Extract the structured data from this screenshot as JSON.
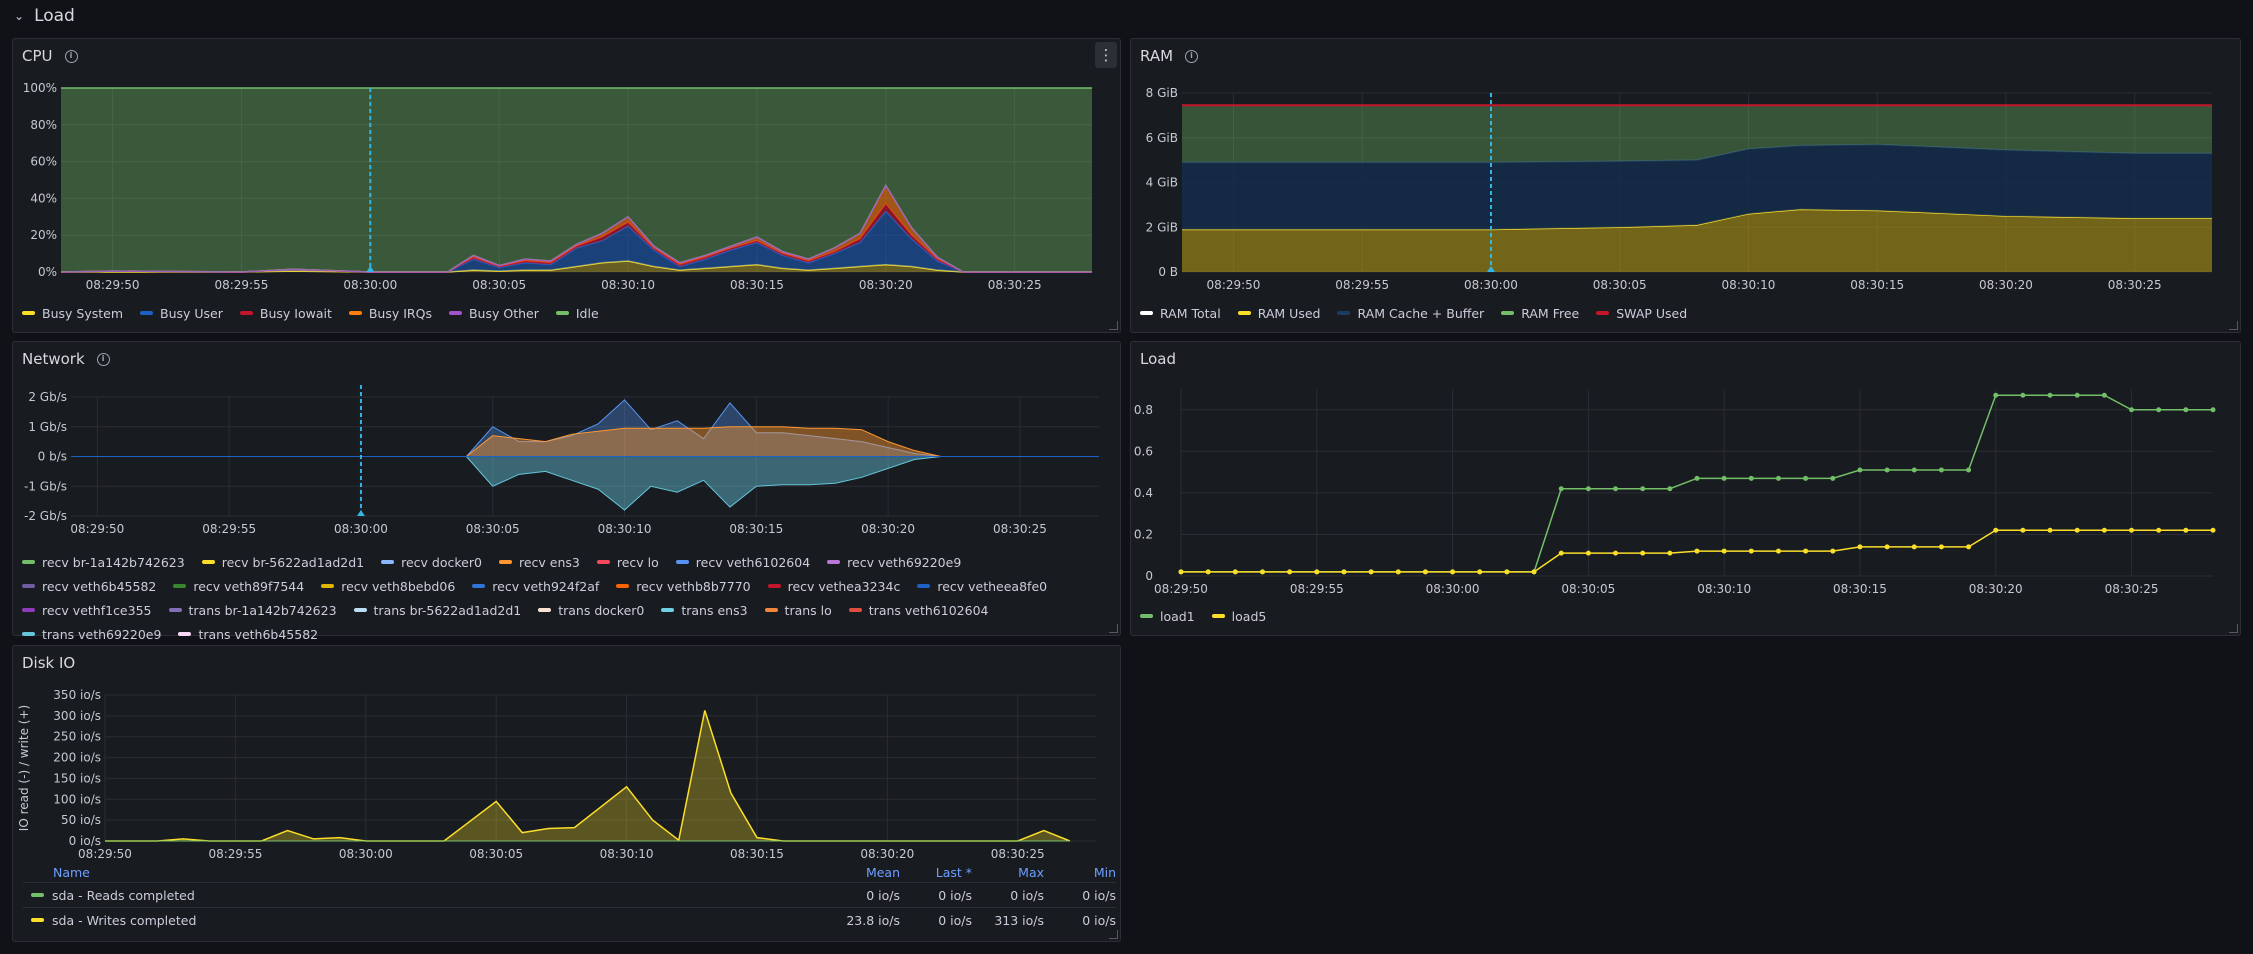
{
  "row": {
    "title": "Load"
  },
  "cpu": {
    "title": "CPU",
    "yticks": [
      "100%",
      "80%",
      "60%",
      "40%",
      "20%",
      "0%"
    ],
    "xticks": [
      "08:29:50",
      "08:29:55",
      "08:30:00",
      "08:30:05",
      "08:30:10",
      "08:30:15",
      "08:30:20",
      "08:30:25"
    ],
    "legend": [
      {
        "label": "Busy System",
        "color": "#fade2a"
      },
      {
        "label": "Busy User",
        "color": "#1f60c4"
      },
      {
        "label": "Busy Iowait",
        "color": "#c4162a"
      },
      {
        "label": "Busy IRQs",
        "color": "#ff7f0e"
      },
      {
        "label": "Busy Other",
        "color": "#a352cc"
      },
      {
        "label": "Idle",
        "color": "#73bf69"
      }
    ]
  },
  "ram": {
    "title": "RAM",
    "yticks": [
      "8 GiB",
      "6 GiB",
      "4 GiB",
      "2 GiB",
      "0 B"
    ],
    "xticks": [
      "08:29:50",
      "08:29:55",
      "08:30:00",
      "08:30:05",
      "08:30:10",
      "08:30:15",
      "08:30:20",
      "08:30:25"
    ],
    "legend": [
      {
        "label": "RAM Total",
        "color": "#ffffff"
      },
      {
        "label": "RAM Used",
        "color": "#fade2a"
      },
      {
        "label": "RAM Cache + Buffer",
        "color": "#1f3a5f"
      },
      {
        "label": "RAM Free",
        "color": "#73bf69"
      },
      {
        "label": "SWAP Used",
        "color": "#c4162a"
      }
    ]
  },
  "network": {
    "title": "Network",
    "yticks": [
      "2 Gb/s",
      "1 Gb/s",
      "0 b/s",
      "-1 Gb/s",
      "-2 Gb/s"
    ],
    "xticks": [
      "08:29:50",
      "08:29:55",
      "08:30:00",
      "08:30:05",
      "08:30:10",
      "08:30:15",
      "08:30:20",
      "08:30:25"
    ],
    "legend": [
      {
        "label": "recv br-1a142b742623",
        "color": "#73bf69"
      },
      {
        "label": "recv br-5622ad1ad2d1",
        "color": "#fade2a"
      },
      {
        "label": "recv docker0",
        "color": "#8ab8ff"
      },
      {
        "label": "recv ens3",
        "color": "#ff9830"
      },
      {
        "label": "recv lo",
        "color": "#f2495c"
      },
      {
        "label": "recv veth6102604",
        "color": "#5794f2"
      },
      {
        "label": "recv veth69220e9",
        "color": "#b877d9"
      },
      {
        "label": "recv veth6b45582",
        "color": "#705da0"
      },
      {
        "label": "recv veth89f7544",
        "color": "#37872d"
      },
      {
        "label": "recv veth8bebd06",
        "color": "#e0b400"
      },
      {
        "label": "recv veth924f2af",
        "color": "#3274d9"
      },
      {
        "label": "recv vethb8b7770",
        "color": "#fa6400"
      },
      {
        "label": "recv vethea3234c",
        "color": "#c4162a"
      },
      {
        "label": "recv vetheea8fe0",
        "color": "#1f60c4"
      },
      {
        "label": "recv vethf1ce355",
        "color": "#8f3bb8"
      },
      {
        "label": "trans br-1a142b742623",
        "color": "#806eb7"
      },
      {
        "label": "trans br-5622ad1ad2d1",
        "color": "#badff4"
      },
      {
        "label": "trans docker0",
        "color": "#f9e2d2"
      },
      {
        "label": "trans ens3",
        "color": "#6ed0e0"
      },
      {
        "label": "trans lo",
        "color": "#ef843c"
      },
      {
        "label": "trans veth6102604",
        "color": "#e24d42"
      },
      {
        "label": "trans veth69220e9",
        "color": "#65c5db"
      },
      {
        "label": "trans veth6b45582",
        "color": "#f9d9f9"
      }
    ]
  },
  "load": {
    "title": "Load",
    "yticks": [
      "0.8",
      "0.6",
      "0.4",
      "0.2",
      "0"
    ],
    "xticks": [
      "08:29:50",
      "08:29:55",
      "08:30:00",
      "08:30:05",
      "08:30:10",
      "08:30:15",
      "08:30:20",
      "08:30:25"
    ],
    "legend": [
      {
        "label": "load1",
        "color": "#73bf69"
      },
      {
        "label": "load5",
        "color": "#fade2a"
      }
    ]
  },
  "diskio": {
    "title": "Disk IO",
    "ylabel": "IO read (-) / write (+)",
    "yticks": [
      "350 io/s",
      "300 io/s",
      "250 io/s",
      "200 io/s",
      "150 io/s",
      "100 io/s",
      "50 io/s",
      "0 io/s"
    ],
    "xticks": [
      "08:29:50",
      "08:29:55",
      "08:30:00",
      "08:30:05",
      "08:30:10",
      "08:30:15",
      "08:30:20",
      "08:30:25"
    ],
    "table": {
      "headers": {
        "name": "Name",
        "mean": "Mean",
        "last": "Last *",
        "max": "Max",
        "min": "Min"
      },
      "rows": [
        {
          "name": "sda - Reads completed",
          "color": "#73bf69",
          "mean": "0 io/s",
          "last": "0 io/s",
          "max": "0 io/s",
          "min": "0 io/s"
        },
        {
          "name": "sda - Writes completed",
          "color": "#fade2a",
          "mean": "23.8 io/s",
          "last": "0 io/s",
          "max": "313 io/s",
          "min": "0 io/s"
        }
      ]
    }
  },
  "chart_data": [
    {
      "type": "area",
      "title": "CPU",
      "ylim": [
        0,
        100
      ],
      "x_range": [
        "08:29:48",
        "08:30:28"
      ],
      "x": [
        "08:29:48",
        "08:29:50",
        "08:29:55",
        "08:29:57",
        "08:30:00",
        "08:30:03",
        "08:30:04",
        "08:30:05",
        "08:30:06",
        "08:30:07",
        "08:30:08",
        "08:30:09",
        "08:30:10",
        "08:30:11",
        "08:30:12",
        "08:30:13",
        "08:30:14",
        "08:30:15",
        "08:30:16",
        "08:30:17",
        "08:30:18",
        "08:30:19",
        "08:30:20",
        "08:30:21",
        "08:30:22",
        "08:30:23",
        "08:30:24",
        "08:30:25",
        "08:30:28"
      ],
      "series": [
        {
          "name": "Busy System",
          "values": [
            0,
            0,
            0,
            0.5,
            0,
            0,
            1,
            0.5,
            1,
            1,
            3,
            5,
            6,
            3,
            1,
            2,
            3,
            4,
            2,
            1,
            2,
            3,
            4,
            3,
            1,
            0,
            0,
            0,
            0
          ]
        },
        {
          "name": "Busy User",
          "values": [
            0,
            0.5,
            0,
            1,
            0,
            0,
            6,
            2,
            4,
            3,
            10,
            12,
            19,
            9,
            2,
            5,
            9,
            12,
            7,
            4,
            8,
            13,
            29,
            15,
            5,
            0,
            0,
            0,
            0
          ]
        },
        {
          "name": "Busy Iowait",
          "values": [
            0,
            0,
            0,
            0,
            0,
            0,
            1,
            0.5,
            1,
            1,
            1,
            2,
            2,
            1,
            1,
            1,
            1,
            1,
            1,
            1,
            1,
            2,
            4,
            2,
            1,
            0,
            0,
            0,
            0
          ]
        },
        {
          "name": "Busy IRQs",
          "values": [
            0,
            0,
            0,
            0,
            0,
            0,
            1,
            0.5,
            1,
            1,
            1,
            2,
            3,
            1,
            1,
            1,
            1,
            2,
            1,
            1,
            2,
            3,
            10,
            4,
            1,
            0,
            0,
            0,
            0
          ]
        },
        {
          "name": "Busy Other",
          "values": [
            0,
            0,
            0,
            0,
            0,
            0,
            0,
            0,
            0,
            0,
            0,
            0,
            0,
            0,
            0,
            0,
            0,
            0,
            0,
            0,
            0,
            0,
            0,
            0,
            0,
            0,
            0,
            0,
            0
          ]
        },
        {
          "name": "Idle",
          "values": [
            100,
            99.5,
            100,
            98.5,
            100,
            100,
            91,
            96.5,
            93,
            94,
            85,
            79,
            70,
            86,
            95,
            91,
            86,
            81,
            89,
            93,
            87,
            79,
            53,
            76,
            92,
            100,
            100,
            100,
            100
          ]
        }
      ]
    },
    {
      "type": "area",
      "title": "RAM",
      "ylim": [
        0,
        8
      ],
      "x_range": [
        "08:29:48",
        "08:30:28"
      ],
      "x": [
        "08:29:48",
        "08:30:00",
        "08:30:05",
        "08:30:08",
        "08:30:10",
        "08:30:12",
        "08:30:15",
        "08:30:20",
        "08:30:25",
        "08:30:28"
      ],
      "series": [
        {
          "name": "RAM Total",
          "values": [
            7.45,
            7.45,
            7.45,
            7.45,
            7.45,
            7.45,
            7.45,
            7.45,
            7.45,
            7.45
          ]
        },
        {
          "name": "RAM Used",
          "values": [
            1.9,
            1.9,
            2.0,
            2.1,
            2.6,
            2.8,
            2.75,
            2.5,
            2.4,
            2.4
          ]
        },
        {
          "name": "RAM Cache + Buffer",
          "values": [
            3.0,
            3.0,
            2.95,
            2.9,
            2.9,
            2.85,
            2.95,
            2.95,
            2.9,
            2.9
          ]
        },
        {
          "name": "RAM Free",
          "values": [
            2.55,
            2.55,
            2.5,
            2.45,
            1.95,
            1.8,
            1.75,
            2.0,
            2.15,
            2.15
          ]
        },
        {
          "name": "SWAP Used",
          "values": [
            0,
            0,
            0,
            0,
            0,
            0,
            0,
            0,
            0,
            0
          ]
        }
      ]
    },
    {
      "type": "area",
      "title": "Network",
      "ylim": [
        -2,
        2
      ],
      "x_range": [
        "08:29:49",
        "08:30:28"
      ],
      "x": [
        "08:30:04",
        "08:30:05",
        "08:30:06",
        "08:30:07",
        "08:30:08",
        "08:30:09",
        "08:30:10",
        "08:30:11",
        "08:30:12",
        "08:30:13",
        "08:30:14",
        "08:30:15",
        "08:30:16",
        "08:30:17",
        "08:30:18",
        "08:30:19",
        "08:30:20",
        "08:30:21",
        "08:30:22"
      ],
      "series": [
        {
          "name": "recv ens3",
          "values": [
            0,
            0.7,
            0.6,
            0.5,
            0.75,
            0.85,
            0.95,
            0.95,
            0.95,
            0.95,
            1.0,
            1.0,
            1.0,
            0.95,
            0.95,
            0.9,
            0.5,
            0.2,
            0
          ]
        },
        {
          "name": "recv veth6102604",
          "values": [
            0,
            1.0,
            0.5,
            0.5,
            0.7,
            1.1,
            1.9,
            0.9,
            1.2,
            0.6,
            1.8,
            0.8,
            0.8,
            0.7,
            0.6,
            0.5,
            0.3,
            0.1,
            0
          ]
        },
        {
          "name": "trans veth69220e9",
          "values": [
            0,
            -1.0,
            -0.6,
            -0.5,
            -0.8,
            -1.1,
            -1.8,
            -1.0,
            -1.2,
            -0.8,
            -1.7,
            -1.0,
            -0.95,
            -0.95,
            -0.9,
            -0.7,
            -0.4,
            -0.1,
            0
          ]
        }
      ]
    },
    {
      "type": "line",
      "title": "Load",
      "ylim": [
        0,
        0.9
      ],
      "x_range": [
        "08:29:50",
        "08:30:28"
      ],
      "x": [
        "08:29:50",
        "08:29:51",
        "08:29:52",
        "08:29:53",
        "08:29:54",
        "08:29:55",
        "08:29:56",
        "08:29:57",
        "08:29:58",
        "08:29:59",
        "08:30:00",
        "08:30:01",
        "08:30:02",
        "08:30:03",
        "08:30:04",
        "08:30:05",
        "08:30:06",
        "08:30:07",
        "08:30:08",
        "08:30:09",
        "08:30:10",
        "08:30:11",
        "08:30:12",
        "08:30:13",
        "08:30:14",
        "08:30:15",
        "08:30:16",
        "08:30:17",
        "08:30:18",
        "08:30:19",
        "08:30:20",
        "08:30:21",
        "08:30:22",
        "08:30:23",
        "08:30:24",
        "08:30:25",
        "08:30:26",
        "08:30:27",
        "08:30:28"
      ],
      "series": [
        {
          "name": "load1",
          "values": [
            0.02,
            0.02,
            0.02,
            0.02,
            0.02,
            0.02,
            0.02,
            0.02,
            0.02,
            0.02,
            0.02,
            0.02,
            0.02,
            0.02,
            0.42,
            0.42,
            0.42,
            0.42,
            0.42,
            0.47,
            0.47,
            0.47,
            0.47,
            0.47,
            0.47,
            0.51,
            0.51,
            0.51,
            0.51,
            0.51,
            0.87,
            0.87,
            0.87,
            0.87,
            0.87,
            0.8,
            0.8,
            0.8,
            0.8
          ]
        },
        {
          "name": "load5",
          "values": [
            0.02,
            0.02,
            0.02,
            0.02,
            0.02,
            0.02,
            0.02,
            0.02,
            0.02,
            0.02,
            0.02,
            0.02,
            0.02,
            0.02,
            0.11,
            0.11,
            0.11,
            0.11,
            0.11,
            0.12,
            0.12,
            0.12,
            0.12,
            0.12,
            0.12,
            0.14,
            0.14,
            0.14,
            0.14,
            0.14,
            0.22,
            0.22,
            0.22,
            0.22,
            0.22,
            0.22,
            0.22,
            0.22,
            0.22
          ]
        }
      ]
    },
    {
      "type": "area",
      "title": "Disk IO",
      "ylabel": "IO read (-) / write (+)",
      "ylim": [
        0,
        350
      ],
      "x_range": [
        "08:29:50",
        "08:30:28"
      ],
      "x": [
        "08:29:50",
        "08:29:52",
        "08:29:53",
        "08:29:54",
        "08:29:56",
        "08:29:57",
        "08:29:58",
        "08:29:59",
        "08:30:00",
        "08:30:03",
        "08:30:05",
        "08:30:06",
        "08:30:07",
        "08:30:08",
        "08:30:10",
        "08:30:11",
        "08:30:12",
        "08:30:13",
        "08:30:14",
        "08:30:15",
        "08:30:16",
        "08:30:24",
        "08:30:25",
        "08:30:26",
        "08:30:27"
      ],
      "series": [
        {
          "name": "sda - Writes completed",
          "values": [
            0,
            0,
            5,
            0,
            0,
            25,
            5,
            8,
            0,
            0,
            95,
            20,
            30,
            32,
            130,
            50,
            2,
            313,
            115,
            8,
            0,
            0,
            0,
            25,
            0
          ]
        },
        {
          "name": "sda - Reads completed",
          "values": [
            0,
            0,
            0,
            0,
            0,
            0,
            0,
            0,
            0,
            0,
            0,
            0,
            0,
            0,
            0,
            0,
            0,
            0,
            0,
            0,
            0,
            0,
            0,
            0,
            0
          ]
        }
      ]
    }
  ]
}
